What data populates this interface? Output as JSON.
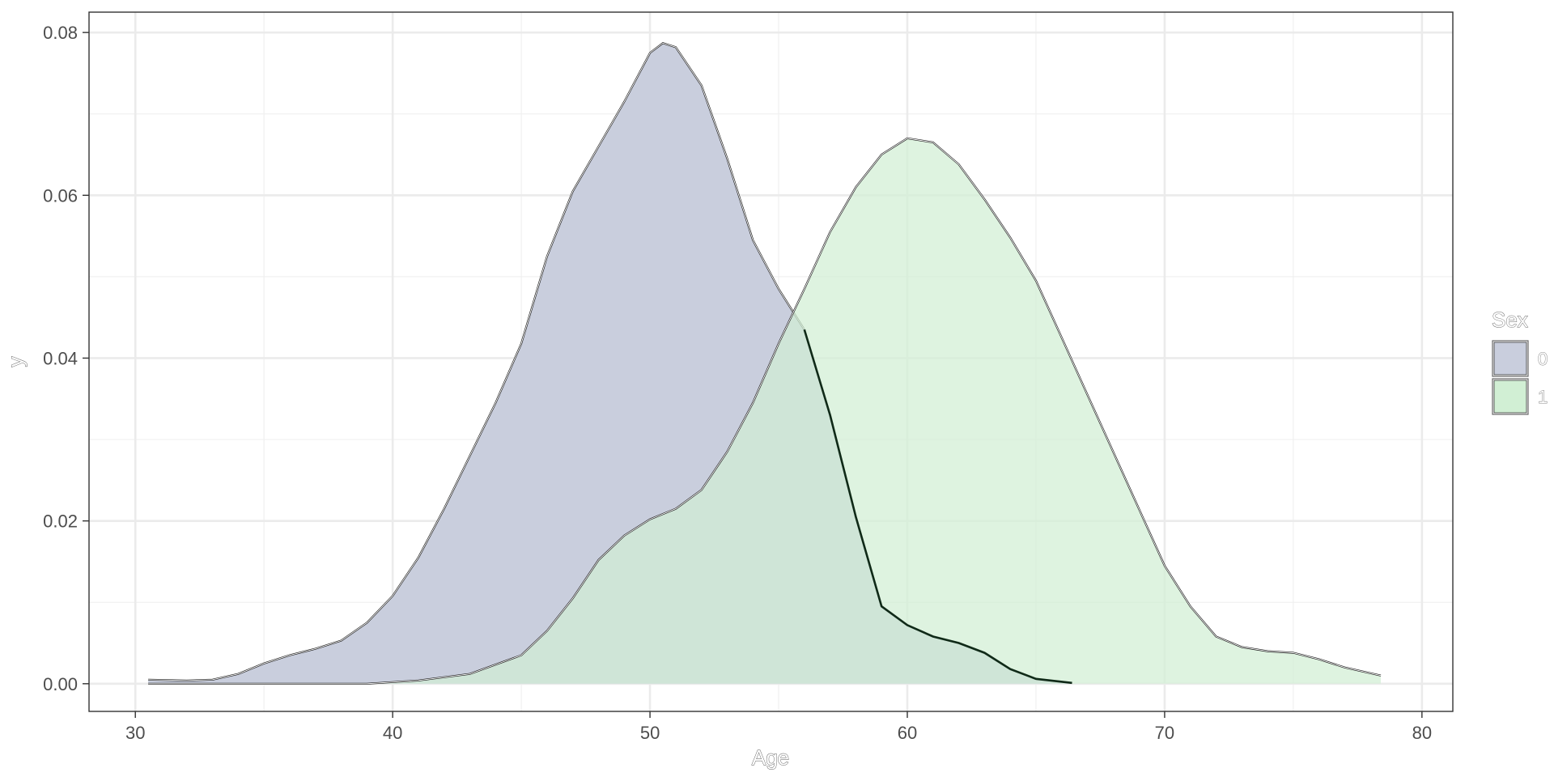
{
  "chart_data": {
    "type": "area",
    "subtype": "density",
    "title": "",
    "xlabel": "Age",
    "ylabel": "y",
    "xlim": [
      28.2,
      81.2
    ],
    "ylim": [
      -0.0034,
      0.0825
    ],
    "x_ticks": [
      30,
      40,
      50,
      60,
      70,
      80
    ],
    "x_tick_labels": [
      "30",
      "40",
      "50",
      "60",
      "70",
      "80"
    ],
    "y_ticks": [
      0.0,
      0.02,
      0.04,
      0.06,
      0.08
    ],
    "y_tick_labels": [
      "0.00",
      "0.02",
      "0.04",
      "0.06",
      "0.08"
    ],
    "grid": true,
    "legend": {
      "title": "Sex",
      "position": "right"
    },
    "series": [
      {
        "name": "0",
        "color": "#c9cedd",
        "points": [
          [
            30.5,
            0.0005
          ],
          [
            32,
            0.0004
          ],
          [
            33,
            0.0005
          ],
          [
            34,
            0.0012
          ],
          [
            35,
            0.0025
          ],
          [
            36,
            0.0035
          ],
          [
            37,
            0.0043
          ],
          [
            38,
            0.0053
          ],
          [
            39,
            0.0075
          ],
          [
            40,
            0.0108
          ],
          [
            41,
            0.0155
          ],
          [
            42,
            0.0215
          ],
          [
            43,
            0.028
          ],
          [
            44,
            0.0345
          ],
          [
            45,
            0.0418
          ],
          [
            46,
            0.0525
          ],
          [
            47,
            0.0605
          ],
          [
            48,
            0.066
          ],
          [
            49,
            0.0715
          ],
          [
            50,
            0.0775
          ],
          [
            50.5,
            0.0787
          ],
          [
            51,
            0.0782
          ],
          [
            52,
            0.0735
          ],
          [
            53,
            0.0645
          ],
          [
            54,
            0.0545
          ],
          [
            55,
            0.0485
          ],
          [
            56,
            0.0435
          ],
          [
            57,
            0.033
          ],
          [
            58,
            0.0205
          ],
          [
            59,
            0.0095
          ],
          [
            60,
            0.0072
          ],
          [
            61,
            0.0058
          ],
          [
            62,
            0.005
          ],
          [
            63,
            0.0038
          ],
          [
            64,
            0.0018
          ],
          [
            65,
            0.0006
          ],
          [
            66.4,
            0.0001
          ]
        ]
      },
      {
        "name": "1",
        "color": "#d1efd4",
        "points": [
          [
            30.5,
            0.0
          ],
          [
            35,
            0.0
          ],
          [
            39,
            0.0
          ],
          [
            41,
            0.0004
          ],
          [
            43,
            0.0012
          ],
          [
            45,
            0.0035
          ],
          [
            46,
            0.0065
          ],
          [
            47,
            0.0105
          ],
          [
            48,
            0.0152
          ],
          [
            49,
            0.0182
          ],
          [
            50,
            0.0202
          ],
          [
            51,
            0.0215
          ],
          [
            52,
            0.0238
          ],
          [
            53,
            0.0285
          ],
          [
            54,
            0.0345
          ],
          [
            55,
            0.0418
          ],
          [
            56,
            0.0485
          ],
          [
            57,
            0.0555
          ],
          [
            58,
            0.061
          ],
          [
            59,
            0.065
          ],
          [
            60,
            0.067
          ],
          [
            61,
            0.0665
          ],
          [
            62,
            0.0638
          ],
          [
            63,
            0.0595
          ],
          [
            64,
            0.0548
          ],
          [
            65,
            0.0495
          ],
          [
            66,
            0.0425
          ],
          [
            67,
            0.0355
          ],
          [
            68,
            0.0285
          ],
          [
            69,
            0.0215
          ],
          [
            70,
            0.0145
          ],
          [
            71,
            0.0095
          ],
          [
            72,
            0.0058
          ],
          [
            73,
            0.0045
          ],
          [
            74,
            0.004
          ],
          [
            75,
            0.0038
          ],
          [
            76,
            0.003
          ],
          [
            77,
            0.002
          ],
          [
            78.4,
            0.001
          ]
        ]
      }
    ]
  }
}
